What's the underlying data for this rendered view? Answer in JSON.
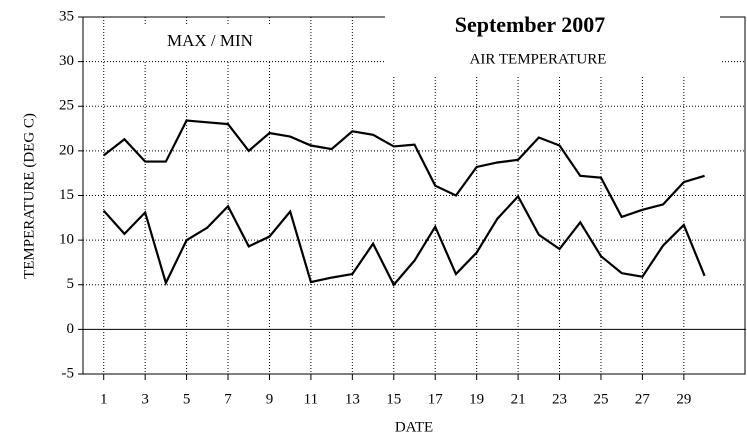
{
  "chart_data": {
    "type": "line",
    "title": "September 2007",
    "subtitle": "AIR TEMPERATURE",
    "annotation": "MAX / MIN",
    "x_label": "DATE",
    "y_label": "TEMPERATURE (DEG C)",
    "x": [
      1,
      2,
      3,
      4,
      5,
      6,
      7,
      8,
      9,
      10,
      11,
      12,
      13,
      14,
      15,
      16,
      17,
      18,
      19,
      20,
      21,
      22,
      23,
      24,
      25,
      26,
      27,
      28,
      29,
      30
    ],
    "series": [
      {
        "color": "#000000",
        "values": [
          19.5,
          21.3,
          18.8,
          18.8,
          23.4,
          23.2,
          23.0,
          20.0,
          22.0,
          21.6,
          20.6,
          20.2,
          22.2,
          21.8,
          20.5,
          20.7,
          16.1,
          15.0,
          18.2,
          18.7,
          19.0,
          21.5,
          20.6,
          17.2,
          17.0,
          12.6,
          13.4,
          14.0,
          16.5,
          17.2
        ]
      },
      {
        "color": "#000000",
        "values": [
          13.3,
          10.7,
          13.1,
          5.2,
          10.0,
          11.4,
          13.8,
          9.3,
          10.4,
          13.2,
          5.3,
          5.8,
          6.2,
          9.6,
          5.0,
          7.7,
          11.5,
          6.2,
          8.6,
          12.4,
          14.9,
          10.6,
          9.0,
          12.0,
          8.2,
          6.3,
          5.9,
          9.4,
          11.7,
          6.0
        ]
      }
    ],
    "xlim": [
      0,
      32
    ],
    "xticks": [
      1,
      3,
      5,
      7,
      9,
      11,
      13,
      15,
      17,
      19,
      21,
      23,
      25,
      27,
      29
    ],
    "ylim": [
      -5,
      35
    ],
    "yticks": [
      -5,
      0,
      5,
      10,
      15,
      20,
      25,
      30,
      35
    ],
    "grid": true
  }
}
